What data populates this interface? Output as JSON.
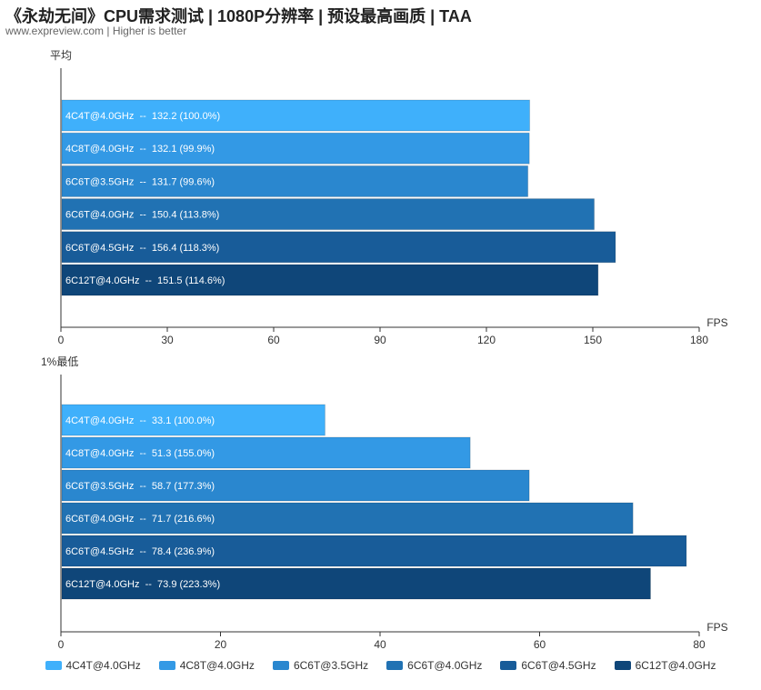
{
  "header": {
    "title": "《永劫无间》CPU需求测试 | 1080P分辨率 | 预设最高画质 | TAA",
    "subtitle": "www.expreview.com | Higher is better"
  },
  "colors": [
    "#3fb0fb",
    "#3399e5",
    "#2a87cf",
    "#2172b3",
    "#185c99",
    "#0f4679"
  ],
  "legend": [
    "4C4T@4.0GHz",
    "4C8T@4.0GHz",
    "6C6T@3.5GHz",
    "6C6T@4.0GHz",
    "6C6T@4.5GHz",
    "6C12T@4.0GHz"
  ],
  "chart_data": [
    {
      "type": "bar",
      "orientation": "horizontal",
      "title": "平均",
      "xlabel": "FPS",
      "xlim": [
        0,
        180
      ],
      "xticks": [
        0,
        30,
        60,
        90,
        120,
        150,
        180
      ],
      "categories": [
        "4C4T@4.0GHz",
        "4C8T@4.0GHz",
        "6C6T@3.5GHz",
        "6C6T@4.0GHz",
        "6C6T@4.5GHz",
        "6C12T@4.0GHz"
      ],
      "values": [
        132.2,
        132.1,
        131.7,
        150.4,
        156.4,
        151.5
      ],
      "data_labels": [
        "4C4T@4.0GHz  --  132.2 (100.0%)",
        "4C8T@4.0GHz  --  132.1 (99.9%)",
        "6C6T@3.5GHz  --  131.7 (99.6%)",
        "6C6T@4.0GHz  --  150.4 (113.8%)",
        "6C6T@4.5GHz  --  156.4 (118.3%)",
        "6C12T@4.0GHz  --  151.5 (114.6%)"
      ]
    },
    {
      "type": "bar",
      "orientation": "horizontal",
      "title": "1%最低",
      "xlabel": "FPS",
      "xlim": [
        0,
        80
      ],
      "xticks": [
        0,
        20,
        40,
        60,
        80
      ],
      "categories": [
        "4C4T@4.0GHz",
        "4C8T@4.0GHz",
        "6C6T@3.5GHz",
        "6C6T@4.0GHz",
        "6C6T@4.5GHz",
        "6C12T@4.0GHz"
      ],
      "values": [
        33.1,
        51.3,
        58.7,
        71.7,
        78.4,
        73.9
      ],
      "data_labels": [
        "4C4T@4.0GHz  --  33.1 (100.0%)",
        "4C8T@4.0GHz  --  51.3 (155.0%)",
        "6C6T@3.5GHz  --  58.7 (177.3%)",
        "6C6T@4.0GHz  --  71.7 (216.6%)",
        "6C6T@4.5GHz  --  78.4 (236.9%)",
        "6C12T@4.0GHz  --  73.9 (223.3%)"
      ]
    }
  ]
}
